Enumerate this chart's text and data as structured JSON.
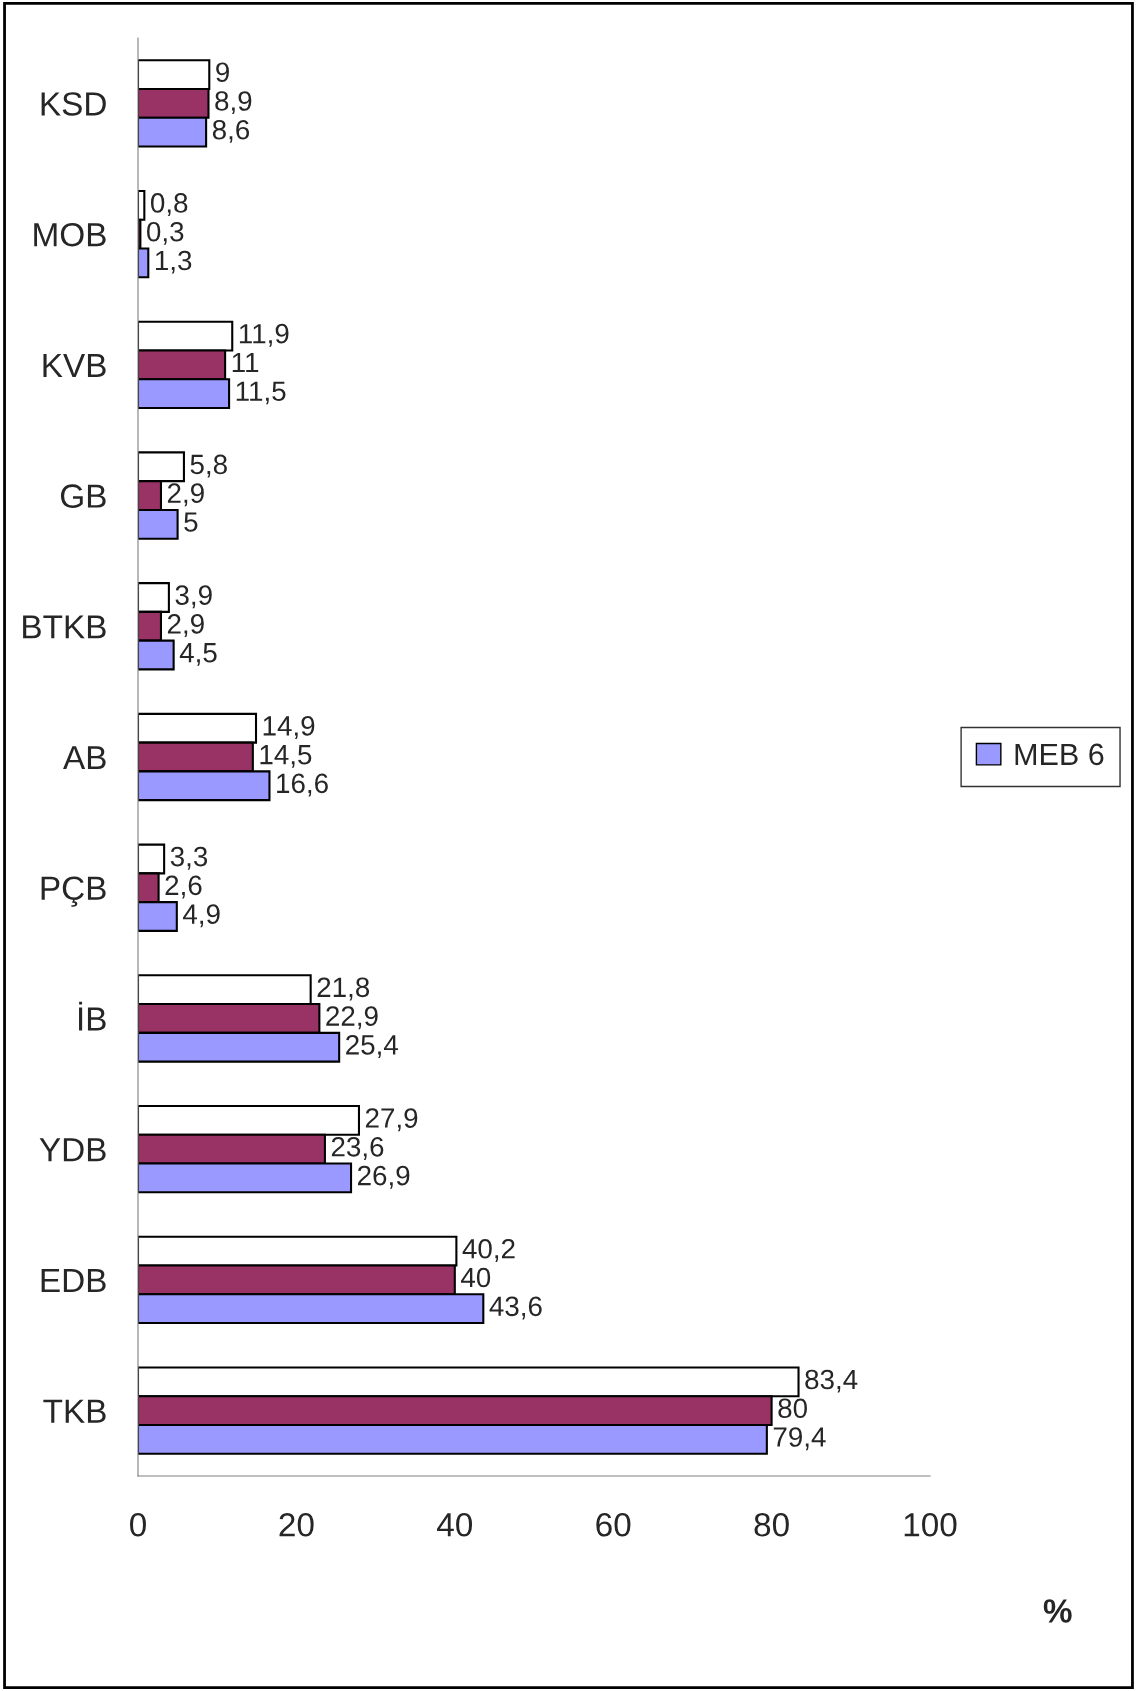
{
  "chart_data": {
    "type": "bar",
    "orientation": "horizontal",
    "xlabel": "%",
    "categories": [
      "KSD",
      "MOB",
      "KVB",
      "GB",
      "BTKB",
      "AB",
      "PÇB",
      "İB",
      "YDB",
      "EDB",
      "TKB"
    ],
    "series": [
      {
        "color": "#ffffff",
        "values": [
          9,
          0.8,
          11.9,
          5.8,
          3.9,
          14.9,
          3.3,
          21.8,
          27.9,
          40.2,
          83.4
        ],
        "value_labels": [
          "9",
          "0,8",
          "11,9",
          "5,8",
          "3,9",
          "14,9",
          "3,3",
          "21,8",
          "27,9",
          "40,2",
          "83,4"
        ]
      },
      {
        "color": "#993366",
        "values": [
          8.9,
          0.3,
          11,
          2.9,
          2.9,
          14.5,
          2.6,
          22.9,
          23.6,
          40,
          80
        ],
        "value_labels": [
          "8,9",
          "0,3",
          "11",
          "2,9",
          "2,9",
          "14,5",
          "2,6",
          "22,9",
          "23,6",
          "40",
          "80"
        ]
      },
      {
        "name": "MEB 6",
        "color": "#9999ff",
        "values": [
          8.6,
          1.3,
          11.5,
          5,
          4.5,
          16.6,
          4.9,
          25.4,
          26.9,
          43.6,
          79.4
        ],
        "value_labels": [
          "8,6",
          "1,3",
          "11,5",
          "5",
          "4,5",
          "16,6",
          "4,9",
          "25,4",
          "26,9",
          "43,6",
          "79,4"
        ]
      }
    ],
    "xlim": [
      0,
      100
    ],
    "xticks": [
      0,
      20,
      40,
      60,
      80,
      100
    ],
    "grid": false,
    "legend": "right"
  }
}
